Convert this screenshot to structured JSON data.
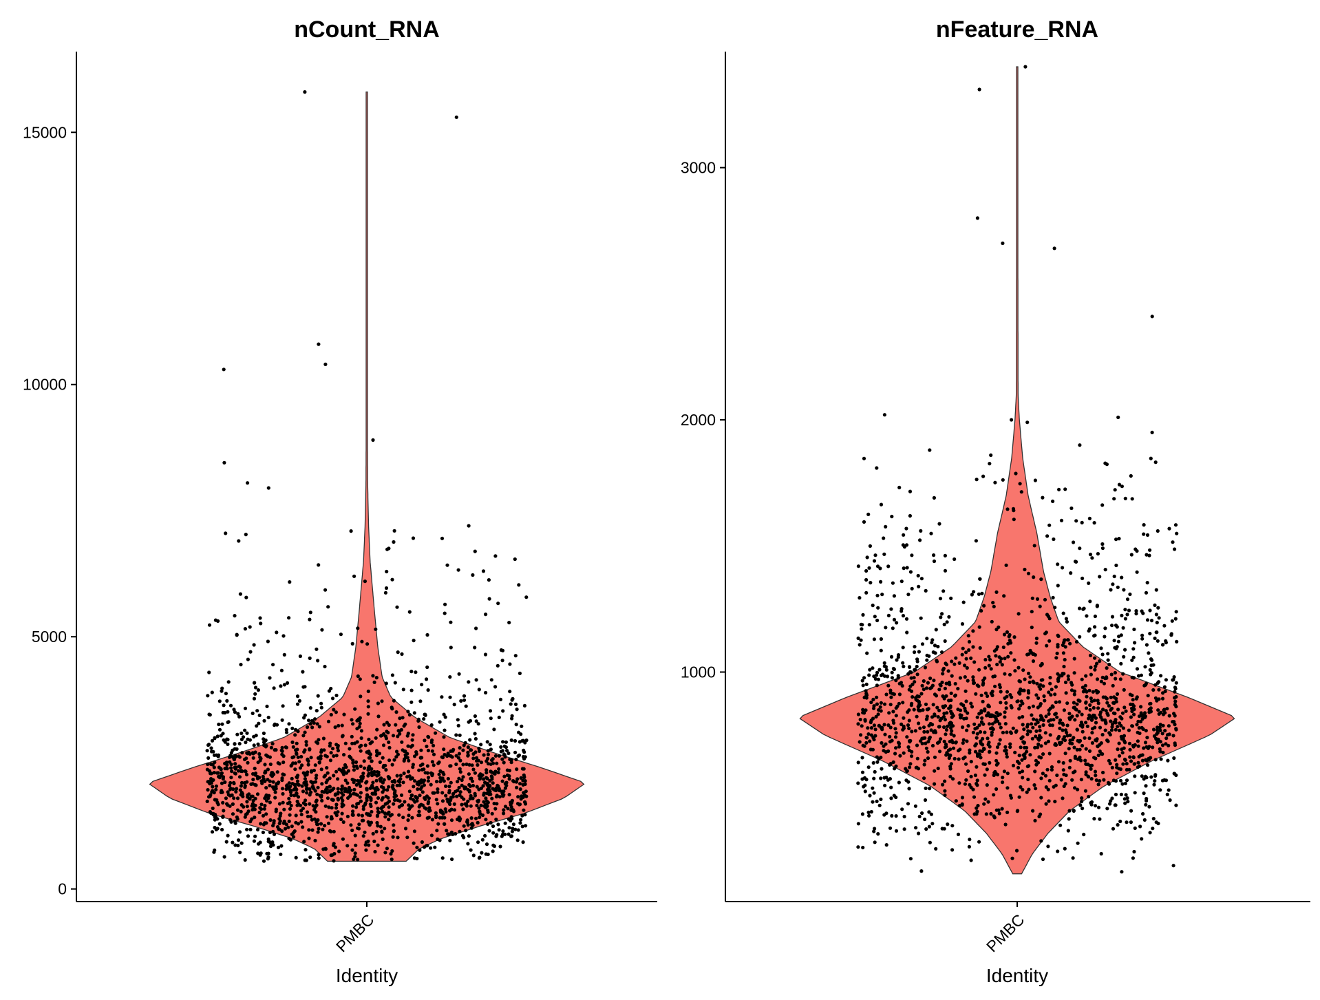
{
  "figure": {
    "background": "#ffffff",
    "violin_fill": "#F8766D",
    "violin_stroke": "#333333",
    "point_color": "#000000"
  },
  "chart_data": [
    {
      "type": "violin",
      "title": "nCount_RNA",
      "xlabel": "Identity",
      "ylabel": "",
      "categories": [
        "PMBC"
      ],
      "ylim": [
        -250,
        16600
      ],
      "yticks": [
        0,
        5000,
        10000,
        15000
      ],
      "ytick_labels": [
        "0",
        "5000",
        "10000",
        "15000"
      ],
      "grid": false,
      "legend": "none",
      "points_jittered": true,
      "n_points_approx": 1800,
      "summary": {
        "min": 550,
        "mode": 2100,
        "max": 15800
      },
      "density_profile": [
        {
          "y": 550,
          "w": 0.18
        },
        {
          "y": 800,
          "w": 0.24
        },
        {
          "y": 1000,
          "w": 0.34
        },
        {
          "y": 1250,
          "w": 0.52
        },
        {
          "y": 1500,
          "w": 0.72
        },
        {
          "y": 1800,
          "w": 0.9
        },
        {
          "y": 2100,
          "w": 1.0
        },
        {
          "y": 2400,
          "w": 0.8
        },
        {
          "y": 2700,
          "w": 0.58
        },
        {
          "y": 3000,
          "w": 0.38
        },
        {
          "y": 3400,
          "w": 0.22
        },
        {
          "y": 3800,
          "w": 0.11
        },
        {
          "y": 4200,
          "w": 0.07
        },
        {
          "y": 4800,
          "w": 0.05
        },
        {
          "y": 5500,
          "w": 0.035
        },
        {
          "y": 6500,
          "w": 0.015
        },
        {
          "y": 7200,
          "w": 0.008
        },
        {
          "y": 8000,
          "w": 0.004
        },
        {
          "y": 10000,
          "w": 0.002
        },
        {
          "y": 15800,
          "w": 0.0015
        }
      ],
      "outliers": [
        15800,
        15300,
        10800,
        10400,
        10300,
        8900,
        8450,
        8050,
        7950,
        7200,
        7100,
        6950,
        6750,
        6600,
        6300,
        6200,
        6100
      ]
    },
    {
      "type": "violin",
      "title": "nFeature_RNA",
      "xlabel": "Identity",
      "ylabel": "",
      "categories": [
        "PMBC"
      ],
      "ylim": [
        90,
        3460
      ],
      "yticks": [
        1000,
        2000,
        3000
      ],
      "ytick_labels": [
        "1000",
        "2000",
        "3000"
      ],
      "grid": false,
      "legend": "none",
      "points_jittered": true,
      "n_points_approx": 1800,
      "summary": {
        "min": 200,
        "mode": 820,
        "max": 3400
      },
      "density_profile": [
        {
          "y": 200,
          "w": 0.02
        },
        {
          "y": 280,
          "w": 0.07
        },
        {
          "y": 360,
          "w": 0.14
        },
        {
          "y": 450,
          "w": 0.24
        },
        {
          "y": 550,
          "w": 0.4
        },
        {
          "y": 650,
          "w": 0.62
        },
        {
          "y": 750,
          "w": 0.88
        },
        {
          "y": 820,
          "w": 1.0
        },
        {
          "y": 900,
          "w": 0.78
        },
        {
          "y": 1000,
          "w": 0.47
        },
        {
          "y": 1100,
          "w": 0.3
        },
        {
          "y": 1200,
          "w": 0.19
        },
        {
          "y": 1300,
          "w": 0.15
        },
        {
          "y": 1400,
          "w": 0.12
        },
        {
          "y": 1550,
          "w": 0.09
        },
        {
          "y": 1700,
          "w": 0.05
        },
        {
          "y": 1850,
          "w": 0.025
        },
        {
          "y": 2000,
          "w": 0.01
        },
        {
          "y": 2100,
          "w": 0.004
        },
        {
          "y": 3400,
          "w": 0.002
        }
      ],
      "outliers": [
        3400,
        3310,
        2800,
        2680,
        2700,
        2410,
        2020,
        2010,
        2000,
        1990,
        1950,
        1900,
        1880,
        1860
      ]
    }
  ]
}
